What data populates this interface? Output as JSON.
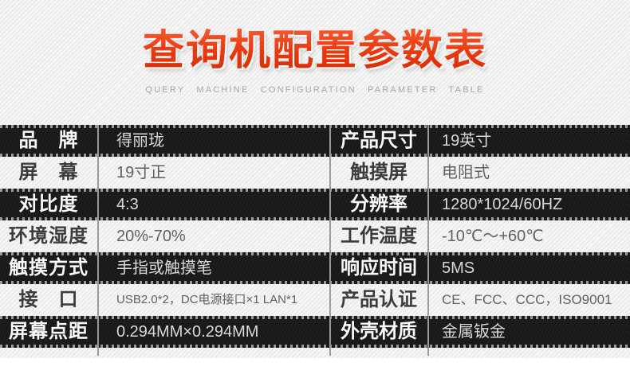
{
  "page": {
    "title": "查询机配置参数表",
    "subtitle": "QUERY MACHINE CONFIGURATION PARAMETER TABLE"
  },
  "colors": {
    "title_red": "#e8350e",
    "dark_row_bg": "#191919",
    "dark_row_label_text": "#fafafa",
    "dark_row_value_text": "#d9d9d9",
    "light_row_label_text": "#3c3c3c",
    "light_row_value_text": "#616161",
    "divider_gray": "#9a9a9a",
    "subtitle_gray": "#a6a6a6",
    "banner_bg": "#f5f5f5"
  },
  "spec_table": {
    "rows": [
      {
        "left_label": "品　牌",
        "left_value": "得丽珑",
        "right_label": "产品尺寸",
        "right_value": "19英寸"
      },
      {
        "left_label": "屏　幕",
        "left_value": "19寸正",
        "right_label": "触摸屏",
        "right_value": "电阻式"
      },
      {
        "left_label": "对比度",
        "left_value": "4:3",
        "right_label": "分辨率",
        "right_value": "1280*1024/60HZ"
      },
      {
        "left_label": "环境湿度",
        "left_value": "20%-70%",
        "right_label": "工作温度",
        "right_value": "-10℃～+60℃"
      },
      {
        "left_label": "触摸方式",
        "left_value": "手指或触摸笔",
        "right_label": "响应时间",
        "right_value": "5MS"
      },
      {
        "left_label": "接　口",
        "left_value": "USB2.0*2，DC电源接口×1 LAN*1",
        "right_label": "产品认证",
        "right_value": "CE、FCC、CCC，ISO9001"
      },
      {
        "left_label": "屏幕点距",
        "left_value": "0.294MM×0.294MM",
        "right_label": "外壳材质",
        "right_value": "金属钣金"
      }
    ]
  }
}
